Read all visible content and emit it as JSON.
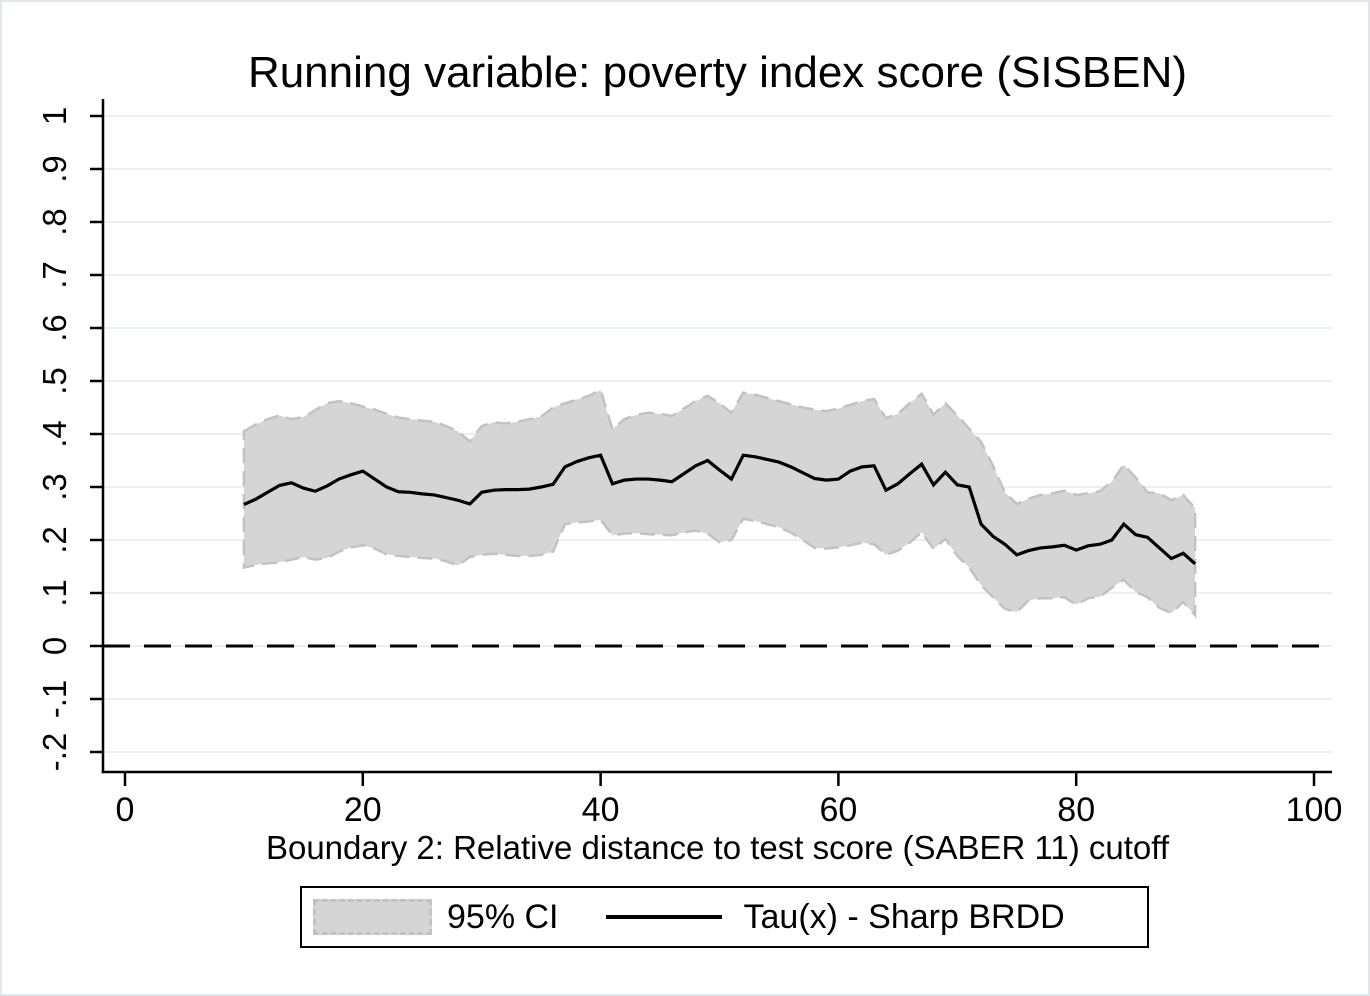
{
  "chart": {
    "title": "Running variable: poverty index score (SISBEN)",
    "x_axis": {
      "title": "Boundary 2: Relative distance to test score (SABER 11) cutoff",
      "ticks": [
        {
          "label": "0",
          "value": 0
        },
        {
          "label": "20",
          "value": 20
        },
        {
          "label": "40",
          "value": 40
        },
        {
          "label": "60",
          "value": 60
        },
        {
          "label": "80",
          "value": 80
        },
        {
          "label": "100",
          "value": 100
        }
      ]
    },
    "y_axis": {
      "title": "",
      "ticks": [
        {
          "label": "1",
          "value": 1
        },
        {
          "label": ".9",
          "value": 0.9
        },
        {
          "label": ".8",
          "value": 0.8
        },
        {
          "label": ".7",
          "value": 0.7
        },
        {
          "label": ".6",
          "value": 0.6
        },
        {
          "label": ".5",
          "value": 0.5
        },
        {
          "label": ".4",
          "value": 0.4
        },
        {
          "label": ".3",
          "value": 0.3
        },
        {
          "label": ".2",
          "value": 0.2
        },
        {
          "label": ".1",
          "value": 0.1
        },
        {
          "label": "0",
          "value": 0
        },
        {
          "label": "-.1",
          "value": -0.1
        },
        {
          "label": "-.2",
          "value": -0.2
        }
      ]
    },
    "legend": [
      {
        "label": "95% CI",
        "type": "area",
        "color": "#d5d5d5"
      },
      {
        "label": "Tau(x) - Sharp BRDD",
        "type": "line",
        "color": "#000000"
      }
    ],
    "colors": {
      "grid": "#e9f1f3",
      "band": "#d5d5d5",
      "band_outline": "#c2c2c2",
      "line": "#000000",
      "zero_line": "#000000",
      "axis": "#000000",
      "text": "#000000",
      "frame": "#dfe9ec"
    }
  },
  "chart_data": {
    "type": "line",
    "title": "Running variable: poverty index score (SISBEN)",
    "xlabel": "Boundary 2: Relative distance to test score (SABER 11) cutoff",
    "ylabel": "",
    "grid": true,
    "legend_position": "bottom-center",
    "xlim": [
      0,
      101.5
    ],
    "ylim": [
      -0.238,
      1.032
    ],
    "x_ticks": [
      0,
      20,
      40,
      60,
      80,
      100
    ],
    "y_ticks": [
      1,
      0.9,
      0.8,
      0.7,
      0.6,
      0.5,
      0.4,
      0.3,
      0.2,
      0.1,
      0,
      -0.1,
      -0.2
    ],
    "reference_line_y": 0,
    "x": [
      10,
      11,
      12,
      13,
      14,
      15,
      16,
      17,
      18,
      19,
      20,
      21,
      22,
      23,
      24,
      25,
      26,
      27,
      28,
      29,
      30,
      31,
      32,
      33,
      34,
      35,
      36,
      37,
      38,
      39,
      40,
      41,
      42,
      43,
      44,
      45,
      46,
      47,
      48,
      49,
      50,
      51,
      52,
      53,
      54,
      55,
      56,
      57,
      58,
      59,
      60,
      61,
      62,
      63,
      64,
      65,
      66,
      67,
      68,
      69,
      70,
      71,
      72,
      73,
      74,
      75,
      76,
      77,
      78,
      79,
      80,
      81,
      82,
      83,
      84,
      85,
      86,
      87,
      88,
      89,
      90
    ],
    "series": [
      {
        "name": "Tau(x) - Sharp BRDD",
        "role": "line",
        "values": [
          0.267,
          0.277,
          0.29,
          0.303,
          0.308,
          0.298,
          0.292,
          0.302,
          0.315,
          0.323,
          0.33,
          0.315,
          0.3,
          0.291,
          0.29,
          0.287,
          0.285,
          0.28,
          0.275,
          0.268,
          0.29,
          0.294,
          0.295,
          0.295,
          0.296,
          0.3,
          0.305,
          0.338,
          0.348,
          0.355,
          0.36,
          0.306,
          0.313,
          0.315,
          0.315,
          0.313,
          0.31,
          0.325,
          0.34,
          0.35,
          0.332,
          0.315,
          0.36,
          0.357,
          0.352,
          0.347,
          0.338,
          0.327,
          0.316,
          0.313,
          0.315,
          0.33,
          0.338,
          0.34,
          0.294,
          0.306,
          0.325,
          0.343,
          0.304,
          0.328,
          0.304,
          0.3,
          0.23,
          0.207,
          0.192,
          0.172,
          0.18,
          0.185,
          0.187,
          0.19,
          0.181,
          0.189,
          0.192,
          0.2,
          0.23,
          0.21,
          0.205,
          0.185,
          0.165,
          0.175,
          0.155
        ]
      },
      {
        "name": "95% CI upper",
        "role": "ci-upper",
        "values": [
          0.405,
          0.418,
          0.428,
          0.435,
          0.428,
          0.432,
          0.445,
          0.458,
          0.462,
          0.458,
          0.452,
          0.446,
          0.438,
          0.431,
          0.428,
          0.425,
          0.423,
          0.415,
          0.405,
          0.386,
          0.415,
          0.422,
          0.42,
          0.423,
          0.428,
          0.433,
          0.45,
          0.458,
          0.465,
          0.472,
          0.483,
          0.409,
          0.428,
          0.436,
          0.44,
          0.438,
          0.434,
          0.448,
          0.462,
          0.472,
          0.458,
          0.44,
          0.478,
          0.474,
          0.468,
          0.462,
          0.456,
          0.45,
          0.446,
          0.443,
          0.448,
          0.455,
          0.462,
          0.466,
          0.43,
          0.438,
          0.458,
          0.476,
          0.437,
          0.458,
          0.435,
          0.41,
          0.385,
          0.34,
          0.29,
          0.268,
          0.278,
          0.285,
          0.288,
          0.293,
          0.285,
          0.288,
          0.292,
          0.31,
          0.342,
          0.318,
          0.29,
          0.288,
          0.275,
          0.285,
          0.26
        ]
      },
      {
        "name": "95% CI lower",
        "role": "ci-lower",
        "values": [
          0.148,
          0.153,
          0.156,
          0.158,
          0.163,
          0.168,
          0.163,
          0.166,
          0.178,
          0.186,
          0.19,
          0.184,
          0.173,
          0.17,
          0.168,
          0.166,
          0.165,
          0.16,
          0.152,
          0.168,
          0.172,
          0.174,
          0.172,
          0.17,
          0.17,
          0.172,
          0.178,
          0.23,
          0.233,
          0.235,
          0.238,
          0.209,
          0.212,
          0.213,
          0.211,
          0.21,
          0.209,
          0.214,
          0.218,
          0.212,
          0.196,
          0.2,
          0.24,
          0.236,
          0.23,
          0.224,
          0.214,
          0.2,
          0.185,
          0.184,
          0.186,
          0.19,
          0.195,
          0.192,
          0.172,
          0.18,
          0.195,
          0.215,
          0.183,
          0.202,
          0.17,
          0.148,
          0.115,
          0.092,
          0.07,
          0.064,
          0.086,
          0.09,
          0.09,
          0.092,
          0.078,
          0.09,
          0.093,
          0.11,
          0.125,
          0.102,
          0.092,
          0.072,
          0.062,
          0.083,
          0.058
        ]
      }
    ]
  }
}
